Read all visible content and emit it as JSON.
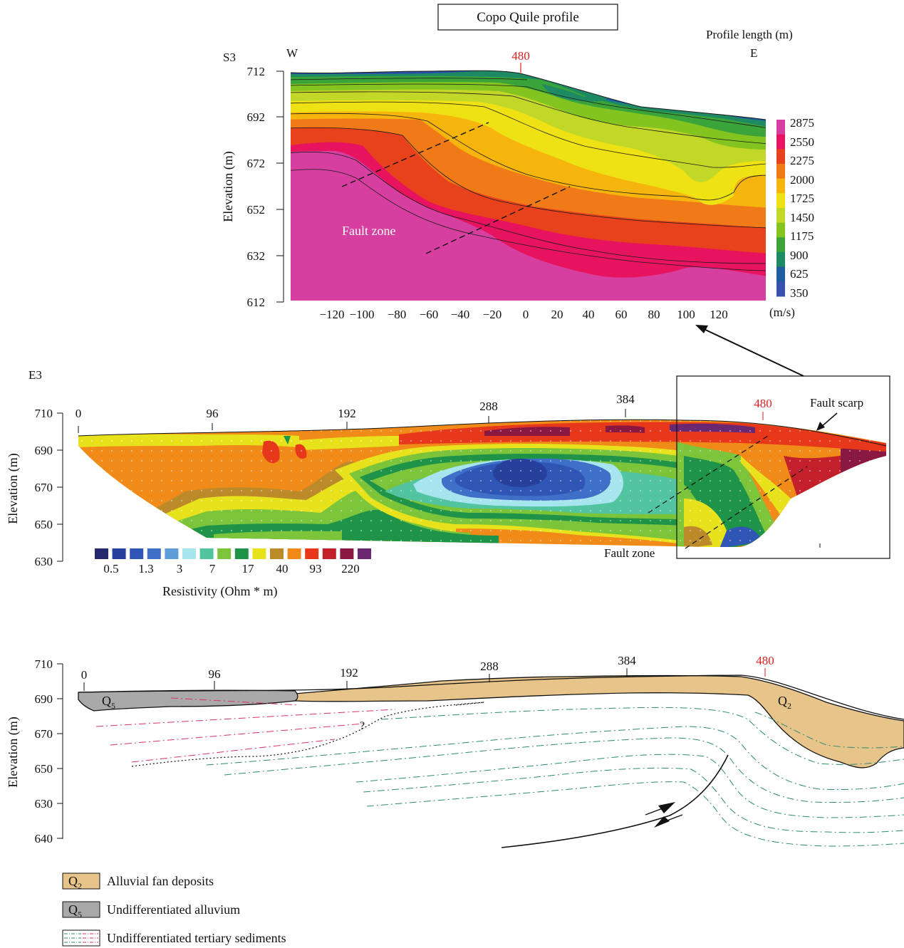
{
  "top": {
    "title": "Copo Quile profile",
    "profile_label": "S3",
    "west": "W",
    "east": "E",
    "profile_length_label": "Profile length (m)",
    "marker": "480",
    "ylabel": "Elevation (m)",
    "y_ticks": [
      "712",
      "692",
      "672",
      "652",
      "632",
      "612"
    ],
    "x_ticks": [
      "−120",
      "−100",
      "−80",
      "−60",
      "−40",
      "−20",
      "0",
      "20",
      "40",
      "60",
      "80",
      "100",
      "120"
    ],
    "fault_zone": "Fault zone",
    "colorbar": {
      "labels": [
        "2875",
        "2550",
        "2275",
        "2000",
        "1725",
        "1450",
        "1175",
        "900",
        "625",
        "350"
      ],
      "unit": "(m/s)",
      "colors": [
        "#d63fa0",
        "#e8135e",
        "#e8421c",
        "#f07a18",
        "#f6b50c",
        "#eee214",
        "#c2d828",
        "#84c420",
        "#3aa33a",
        "#1e8a64",
        "#1e5e9e",
        "#3850b0"
      ]
    }
  },
  "middle": {
    "profile_label": "E3",
    "ylabel": "Elevation (m)",
    "y_ticks": [
      "710",
      "690",
      "670",
      "650",
      "630"
    ],
    "x_ticks": [
      "0",
      "96",
      "192",
      "288",
      "384",
      "480"
    ],
    "fault_scarp": "Fault scarp",
    "fault_zone": "Fault zone",
    "legend_labels": [
      "0.5",
      "1.3",
      "3",
      "7",
      "17",
      "40",
      "93",
      "220"
    ],
    "legend_title": "Resistivity (Ohm * m)",
    "legend_colors": [
      "#252a6e",
      "#27409c",
      "#2f55b5",
      "#3e70c8",
      "#5e9ed8",
      "#a6e4ee",
      "#52c4a0",
      "#7cc43a",
      "#1f9448",
      "#e8e21c",
      "#bd8a2a",
      "#f08a18",
      "#e8381c",
      "#c4202c",
      "#8a1840",
      "#6a2870"
    ]
  },
  "bottom": {
    "ylabel": "Elevation (m)",
    "y_ticks": [
      "710",
      "690",
      "670",
      "650",
      "630",
      "640"
    ],
    "x_ticks": [
      "0",
      "96",
      "192",
      "288",
      "384",
      "480"
    ],
    "q5_label": "Q5",
    "q2_label": "Q2",
    "question": "?"
  },
  "legend": [
    {
      "sym": "Q2",
      "text": "Alluvial fan deposits",
      "color": "#e7c48a"
    },
    {
      "sym": "Q5",
      "text": "Undifferentiated alluvium",
      "color": "#a9a9a9"
    },
    {
      "sym": "",
      "text": "Undifferentiated tertiary sediments",
      "color": "#ffffff"
    }
  ]
}
